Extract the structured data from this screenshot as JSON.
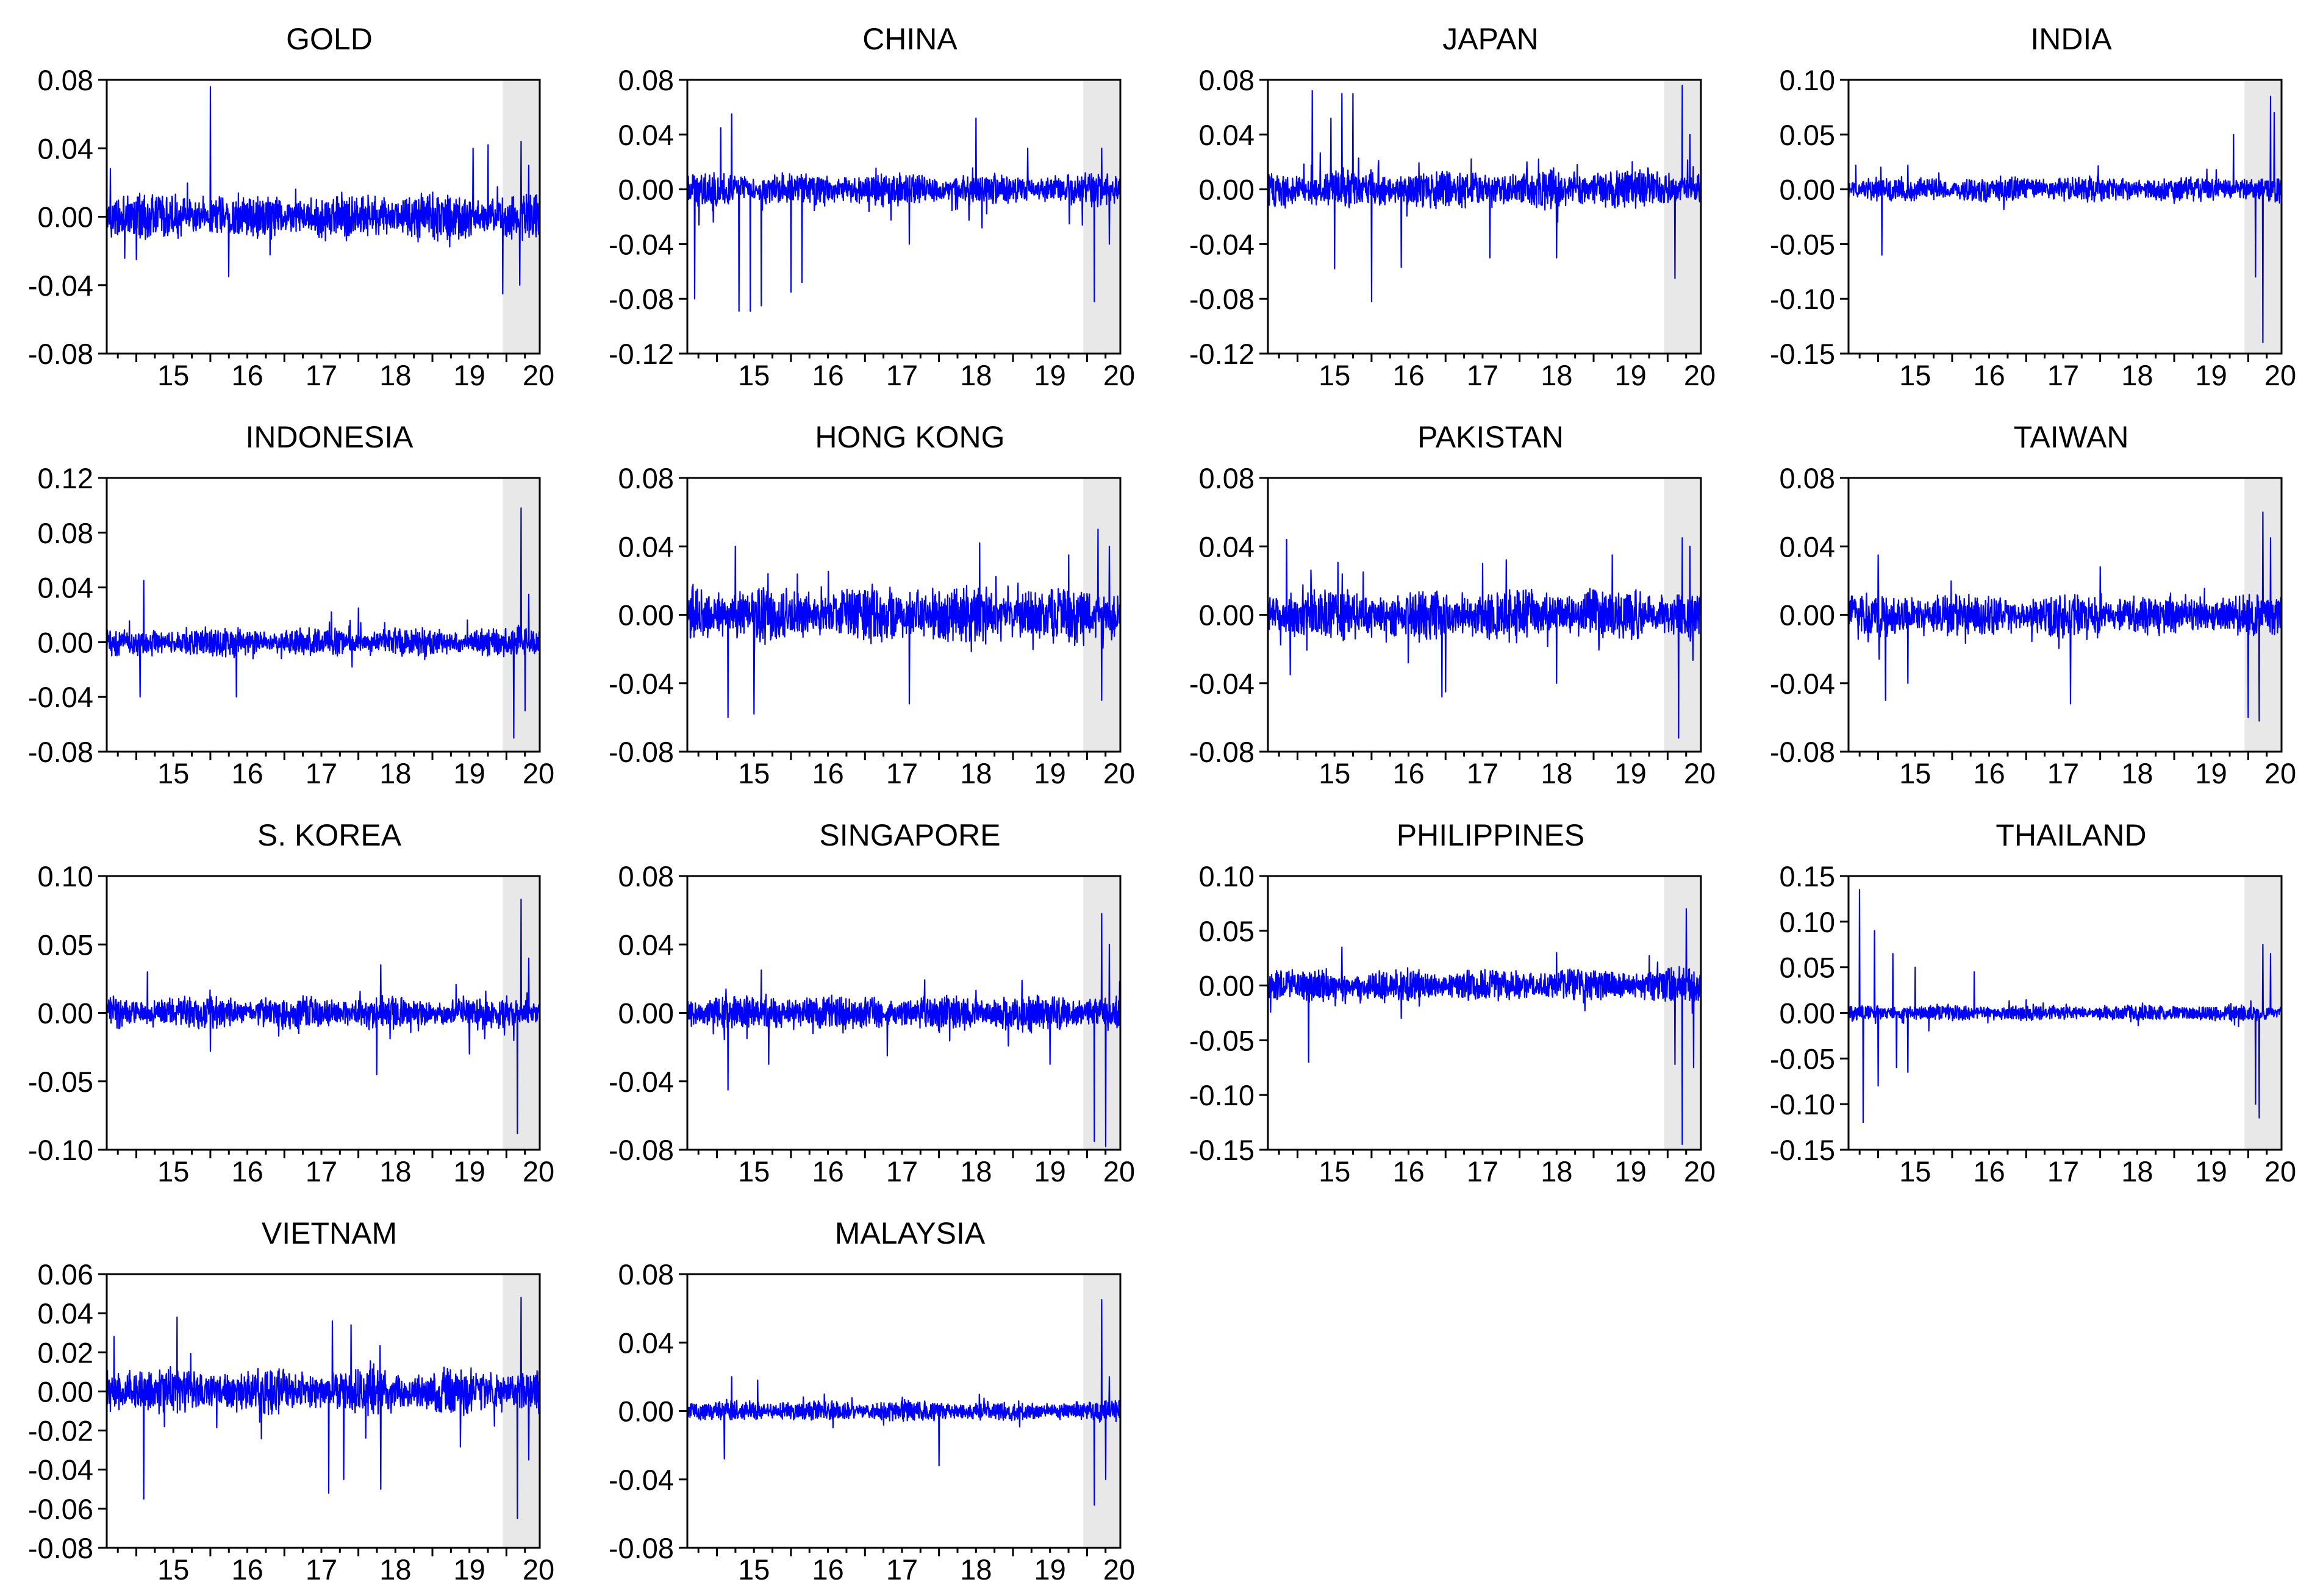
{
  "figure": {
    "x_tick_labels": [
      "15",
      "16",
      "17",
      "18",
      "19",
      "20"
    ],
    "colors": {
      "line": "#0000ff",
      "shade": "#e8e8e8",
      "axis": "#000000",
      "background": "#ffffff"
    }
  },
  "chart_data": [
    {
      "type": "line",
      "title": "GOLD",
      "ylim": [
        -0.08,
        0.08
      ],
      "yticks": [
        -0.08,
        -0.04,
        0.0,
        0.04,
        0.08
      ],
      "y_tick_labels": [
        "-0.08",
        "-0.04",
        "0.00",
        "0.04",
        "0.08"
      ],
      "xlim": [
        2014.6,
        2020.45
      ],
      "xticks": [
        2015,
        2016,
        2017,
        2018,
        2019,
        2020
      ],
      "shaded_x": [
        2019.95,
        2020.45
      ],
      "grid": false,
      "base_amplitude": 0.009,
      "spikes": [
        [
          2014.65,
          0.028
        ],
        [
          2015.9,
          0.012
        ],
        [
          2016.0,
          0.076
        ],
        [
          2016.25,
          -0.035
        ],
        [
          2015.0,
          -0.025
        ],
        [
          2019.75,
          0.042
        ],
        [
          2019.95,
          -0.045
        ],
        [
          2020.2,
          0.044
        ],
        [
          2020.18,
          -0.04
        ],
        [
          2020.3,
          0.03
        ],
        [
          2019.55,
          0.04
        ]
      ]
    },
    {
      "type": "line",
      "title": "CHINA",
      "ylim": [
        -0.12,
        0.08
      ],
      "yticks": [
        -0.12,
        -0.08,
        -0.04,
        0.0,
        0.04,
        0.08
      ],
      "y_tick_labels": [
        "-0.12",
        "-0.08",
        "-0.04",
        "0.00",
        "0.04",
        "0.08"
      ],
      "xlim": [
        2014.6,
        2020.45
      ],
      "xticks": [
        2015,
        2016,
        2017,
        2018,
        2019,
        2020
      ],
      "shaded_x": [
        2019.95,
        2020.45
      ],
      "grid": false,
      "base_amplitude": 0.008,
      "spikes": [
        [
          2014.7,
          -0.08
        ],
        [
          2015.2,
          0.055
        ],
        [
          2015.3,
          -0.089
        ],
        [
          2015.45,
          -0.089
        ],
        [
          2015.6,
          -0.085
        ],
        [
          2015.05,
          0.045
        ],
        [
          2016.0,
          -0.075
        ],
        [
          2016.15,
          -0.068
        ],
        [
          2017.6,
          -0.04
        ],
        [
          2018.5,
          0.052
        ],
        [
          2019.2,
          0.03
        ],
        [
          2020.1,
          -0.082
        ],
        [
          2020.2,
          0.03
        ],
        [
          2020.3,
          -0.04
        ]
      ]
    },
    {
      "type": "line",
      "title": "JAPAN",
      "ylim": [
        -0.12,
        0.08
      ],
      "yticks": [
        -0.12,
        -0.08,
        -0.04,
        0.0,
        0.04,
        0.08
      ],
      "y_tick_labels": [
        "-0.12",
        "-0.08",
        "-0.04",
        "0.00",
        "0.04",
        "0.08"
      ],
      "xlim": [
        2014.6,
        2020.45
      ],
      "xticks": [
        2015,
        2016,
        2017,
        2018,
        2019,
        2020
      ],
      "shaded_x": [
        2019.95,
        2020.45
      ],
      "grid": false,
      "base_amplitude": 0.01,
      "spikes": [
        [
          2015.2,
          0.072
        ],
        [
          2015.6,
          0.07
        ],
        [
          2015.75,
          0.07
        ],
        [
          2015.45,
          0.052
        ],
        [
          2016.0,
          -0.082
        ],
        [
          2016.4,
          0.064
        ],
        [
          2016.4,
          -0.057
        ],
        [
          2015.5,
          -0.058
        ],
        [
          2017.6,
          -0.05
        ],
        [
          2018.5,
          -0.05
        ],
        [
          2020.1,
          -0.065
        ],
        [
          2020.2,
          0.076
        ],
        [
          2020.3,
          0.04
        ]
      ]
    },
    {
      "type": "line",
      "title": "INDIA",
      "ylim": [
        -0.15,
        0.1
      ],
      "yticks": [
        -0.15,
        -0.1,
        -0.05,
        0.0,
        0.05,
        0.1
      ],
      "y_tick_labels": [
        "-0.15",
        "-0.10",
        "-0.05",
        "0.00",
        "0.05",
        "0.10"
      ],
      "xlim": [
        2014.6,
        2020.45
      ],
      "xticks": [
        2015,
        2016,
        2017,
        2018,
        2019,
        2020
      ],
      "shaded_x": [
        2019.95,
        2020.45
      ],
      "grid": false,
      "base_amplitude": 0.008,
      "spikes": [
        [
          2014.7,
          0.022
        ],
        [
          2015.05,
          -0.06
        ],
        [
          2015.4,
          0.022
        ],
        [
          2019.8,
          0.05
        ],
        [
          2020.1,
          -0.08
        ],
        [
          2020.2,
          -0.14
        ],
        [
          2020.3,
          0.085
        ],
        [
          2020.35,
          0.07
        ]
      ]
    },
    {
      "type": "line",
      "title": "INDONESIA",
      "ylim": [
        -0.08,
        0.12
      ],
      "yticks": [
        -0.08,
        -0.04,
        0.0,
        0.04,
        0.08,
        0.12
      ],
      "y_tick_labels": [
        "-0.08",
        "-0.04",
        "0.00",
        "0.04",
        "0.08",
        "0.12"
      ],
      "xlim": [
        2014.6,
        2020.45
      ],
      "xticks": [
        2015,
        2016,
        2017,
        2018,
        2019,
        2020
      ],
      "shaded_x": [
        2019.95,
        2020.45
      ],
      "grid": false,
      "base_amplitude": 0.007,
      "spikes": [
        [
          2015.1,
          0.045
        ],
        [
          2015.05,
          -0.04
        ],
        [
          2016.35,
          -0.04
        ],
        [
          2018.0,
          0.025
        ],
        [
          2020.1,
          -0.07
        ],
        [
          2020.2,
          0.098
        ],
        [
          2020.3,
          0.035
        ],
        [
          2020.25,
          -0.05
        ]
      ]
    },
    {
      "type": "line",
      "title": "HONG KONG",
      "ylim": [
        -0.08,
        0.08
      ],
      "yticks": [
        -0.08,
        -0.04,
        0.0,
        0.04,
        0.08
      ],
      "y_tick_labels": [
        "-0.08",
        "-0.04",
        "0.00",
        "0.04",
        "0.08"
      ],
      "xlim": [
        2014.6,
        2020.45
      ],
      "xticks": [
        2015,
        2016,
        2017,
        2018,
        2019,
        2020
      ],
      "shaded_x": [
        2019.95,
        2020.45
      ],
      "grid": false,
      "base_amplitude": 0.011,
      "spikes": [
        [
          2015.25,
          0.04
        ],
        [
          2015.15,
          -0.06
        ],
        [
          2015.5,
          -0.058
        ],
        [
          2017.6,
          -0.052
        ],
        [
          2018.55,
          0.042
        ],
        [
          2019.75,
          0.035
        ],
        [
          2020.15,
          0.05
        ],
        [
          2020.2,
          -0.05
        ],
        [
          2020.3,
          0.04
        ]
      ]
    },
    {
      "type": "line",
      "title": "PAKISTAN",
      "ylim": [
        -0.08,
        0.08
      ],
      "yticks": [
        -0.08,
        -0.04,
        0.0,
        0.04,
        0.08
      ],
      "y_tick_labels": [
        "-0.08",
        "-0.04",
        "0.00",
        "0.04",
        "0.08"
      ],
      "xlim": [
        2014.6,
        2020.45
      ],
      "xticks": [
        2015,
        2016,
        2017,
        2018,
        2019,
        2020
      ],
      "shaded_x": [
        2019.95,
        2020.45
      ],
      "grid": false,
      "base_amplitude": 0.01,
      "spikes": [
        [
          2014.85,
          0.044
        ],
        [
          2014.9,
          -0.035
        ],
        [
          2016.95,
          -0.048
        ],
        [
          2017.0,
          -0.045
        ],
        [
          2017.5,
          0.03
        ],
        [
          2018.5,
          -0.04
        ],
        [
          2019.25,
          0.035
        ],
        [
          2020.15,
          -0.072
        ],
        [
          2020.2,
          0.045
        ],
        [
          2020.3,
          0.04
        ]
      ]
    },
    {
      "type": "line",
      "title": "TAIWAN",
      "ylim": [
        -0.08,
        0.08
      ],
      "yticks": [
        -0.08,
        -0.04,
        0.0,
        0.04,
        0.08
      ],
      "y_tick_labels": [
        "-0.08",
        "-0.04",
        "0.00",
        "0.04",
        "0.08"
      ],
      "xlim": [
        2014.6,
        2020.45
      ],
      "xticks": [
        2015,
        2016,
        2017,
        2018,
        2019,
        2020
      ],
      "shaded_x": [
        2019.95,
        2020.45
      ],
      "grid": false,
      "base_amplitude": 0.008,
      "spikes": [
        [
          2015.0,
          0.035
        ],
        [
          2015.1,
          -0.05
        ],
        [
          2015.4,
          -0.04
        ],
        [
          2017.6,
          -0.052
        ],
        [
          2018.0,
          -0.065
        ],
        [
          2018.0,
          0.028
        ],
        [
          2020.0,
          -0.06
        ],
        [
          2020.15,
          -0.062
        ],
        [
          2020.2,
          0.06
        ],
        [
          2020.3,
          0.045
        ]
      ]
    },
    {
      "type": "line",
      "title": "S. KOREA",
      "ylim": [
        -0.1,
        0.1
      ],
      "yticks": [
        -0.1,
        -0.05,
        0.0,
        0.05,
        0.1
      ],
      "y_tick_labels": [
        "-0.10",
        "-0.05",
        "0.00",
        "0.05",
        "0.10"
      ],
      "xlim": [
        2014.6,
        2020.45
      ],
      "xticks": [
        2015,
        2016,
        2017,
        2018,
        2019,
        2020
      ],
      "shaded_x": [
        2019.95,
        2020.45
      ],
      "grid": false,
      "base_amplitude": 0.008,
      "spikes": [
        [
          2015.15,
          0.03
        ],
        [
          2016.0,
          -0.028
        ],
        [
          2018.3,
          0.035
        ],
        [
          2018.25,
          -0.045
        ],
        [
          2019.5,
          -0.03
        ],
        [
          2020.15,
          -0.088
        ],
        [
          2020.2,
          0.083
        ],
        [
          2020.3,
          0.04
        ]
      ]
    },
    {
      "type": "line",
      "title": "SINGAPORE",
      "ylim": [
        -0.08,
        0.08
      ],
      "yticks": [
        -0.08,
        -0.04,
        0.0,
        0.04,
        0.08
      ],
      "y_tick_labels": [
        "-0.08",
        "-0.04",
        "0.00",
        "0.04",
        "0.08"
      ],
      "xlim": [
        2014.6,
        2020.45
      ],
      "xticks": [
        2015,
        2016,
        2017,
        2018,
        2019,
        2020
      ],
      "shaded_x": [
        2019.95,
        2020.45
      ],
      "grid": false,
      "base_amplitude": 0.007,
      "spikes": [
        [
          2015.15,
          -0.045
        ],
        [
          2015.6,
          0.025
        ],
        [
          2015.7,
          -0.03
        ],
        [
          2017.3,
          -0.025
        ],
        [
          2019.5,
          -0.03
        ],
        [
          2020.1,
          -0.075
        ],
        [
          2020.2,
          0.058
        ],
        [
          2020.25,
          -0.078
        ],
        [
          2020.3,
          0.04
        ]
      ]
    },
    {
      "type": "line",
      "title": "PHILIPPINES",
      "ylim": [
        -0.15,
        0.1
      ],
      "yticks": [
        -0.15,
        -0.1,
        -0.05,
        0.0,
        0.05,
        0.1
      ],
      "y_tick_labels": [
        "-0.15",
        "-0.10",
        "-0.05",
        "0.00",
        "0.05",
        "0.10"
      ],
      "xlim": [
        2014.6,
        2020.45
      ],
      "xticks": [
        2015,
        2016,
        2017,
        2018,
        2019,
        2020
      ],
      "shaded_x": [
        2019.95,
        2020.45
      ],
      "grid": false,
      "base_amplitude": 0.01,
      "spikes": [
        [
          2015.15,
          -0.07
        ],
        [
          2015.6,
          0.035
        ],
        [
          2016.4,
          -0.03
        ],
        [
          2018.5,
          0.03
        ],
        [
          2020.1,
          -0.072
        ],
        [
          2020.2,
          -0.145
        ],
        [
          2020.25,
          0.07
        ],
        [
          2020.35,
          -0.075
        ]
      ]
    },
    {
      "type": "line",
      "title": "THAILAND",
      "ylim": [
        -0.15,
        0.15
      ],
      "yticks": [
        -0.15,
        -0.1,
        -0.05,
        0.0,
        0.05,
        0.1,
        0.15
      ],
      "y_tick_labels": [
        "-0.15",
        "-0.10",
        "-0.05",
        "0.00",
        "0.05",
        "0.10",
        "0.15"
      ],
      "xlim": [
        2014.6,
        2020.45
      ],
      "xticks": [
        2015,
        2016,
        2017,
        2018,
        2019,
        2020
      ],
      "shaded_x": [
        2019.95,
        2020.45
      ],
      "grid": false,
      "base_amplitude": 0.006,
      "spikes": [
        [
          2014.75,
          0.135
        ],
        [
          2014.8,
          -0.12
        ],
        [
          2014.95,
          0.09
        ],
        [
          2015.0,
          -0.08
        ],
        [
          2015.2,
          0.065
        ],
        [
          2015.25,
          -0.06
        ],
        [
          2015.4,
          -0.065
        ],
        [
          2015.5,
          0.05
        ],
        [
          2016.3,
          0.045
        ],
        [
          2020.1,
          -0.1
        ],
        [
          2020.15,
          -0.115
        ],
        [
          2020.2,
          0.075
        ],
        [
          2020.3,
          0.065
        ]
      ]
    },
    {
      "type": "line",
      "title": "VIETNAM",
      "ylim": [
        -0.08,
        0.06
      ],
      "yticks": [
        -0.08,
        -0.06,
        -0.04,
        -0.02,
        0.0,
        0.02,
        0.04,
        0.06
      ],
      "y_tick_labels": [
        "-0.08",
        "-0.06",
        "-0.04",
        "-0.02",
        "0.00",
        "0.02",
        "0.04",
        "0.06"
      ],
      "xlim": [
        2014.6,
        2020.45
      ],
      "xticks": [
        2015,
        2016,
        2017,
        2018,
        2019,
        2020
      ],
      "shaded_x": [
        2019.95,
        2020.45
      ],
      "grid": false,
      "base_amplitude": 0.008,
      "spikes": [
        [
          2014.7,
          0.028
        ],
        [
          2015.1,
          -0.055
        ],
        [
          2015.55,
          0.038
        ],
        [
          2017.6,
          -0.052
        ],
        [
          2017.65,
          0.036
        ],
        [
          2017.9,
          0.034
        ],
        [
          2017.8,
          -0.045
        ],
        [
          2018.3,
          -0.05
        ],
        [
          2020.15,
          -0.065
        ],
        [
          2020.2,
          0.048
        ],
        [
          2020.3,
          -0.035
        ]
      ]
    },
    {
      "type": "line",
      "title": "MALAYSIA",
      "ylim": [
        -0.08,
        0.08
      ],
      "yticks": [
        -0.08,
        -0.04,
        0.0,
        0.04,
        0.08
      ],
      "y_tick_labels": [
        "-0.08",
        "-0.04",
        "0.00",
        "0.04",
        "0.08"
      ],
      "xlim": [
        2014.6,
        2020.45
      ],
      "xticks": [
        2015,
        2016,
        2017,
        2018,
        2019,
        2020
      ],
      "shaded_x": [
        2019.95,
        2020.45
      ],
      "grid": false,
      "base_amplitude": 0.004,
      "spikes": [
        [
          2015.1,
          -0.028
        ],
        [
          2015.2,
          0.02
        ],
        [
          2015.55,
          0.018
        ],
        [
          2018.0,
          -0.032
        ],
        [
          2020.1,
          -0.055
        ],
        [
          2020.2,
          0.065
        ],
        [
          2020.25,
          -0.04
        ],
        [
          2020.3,
          0.02
        ]
      ]
    }
  ]
}
